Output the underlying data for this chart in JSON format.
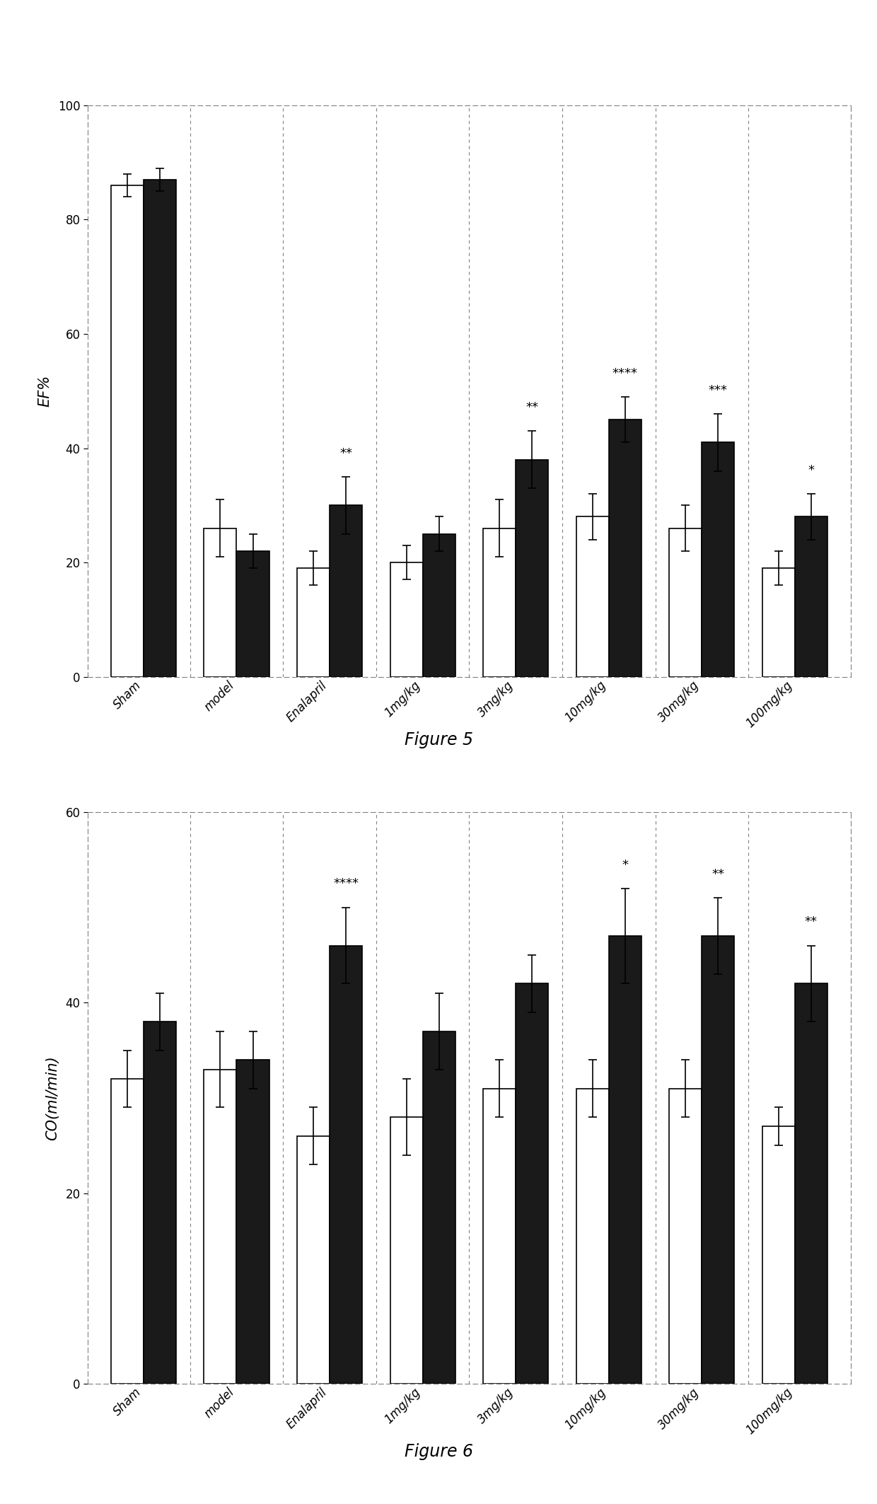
{
  "fig5": {
    "categories": [
      "Sham",
      "model",
      "Enalapril",
      "1mg/kg",
      "3mg/kg",
      "10mg/kg",
      "30mg/kg",
      "100mg/kg"
    ],
    "white_bars": [
      86,
      26,
      19,
      20,
      26,
      28,
      26,
      19
    ],
    "black_bars": [
      87,
      22,
      30,
      25,
      38,
      45,
      41,
      28
    ],
    "white_errors": [
      2,
      5,
      3,
      3,
      5,
      4,
      4,
      3
    ],
    "black_errors": [
      2,
      3,
      5,
      3,
      5,
      4,
      5,
      4
    ],
    "ylabel": "EF%",
    "ylim": [
      0,
      100
    ],
    "yticks": [
      0,
      20,
      40,
      60,
      80,
      100
    ],
    "significance": [
      "",
      "",
      "**",
      "",
      "**",
      "****",
      "***",
      "*"
    ],
    "title": "Figure 5"
  },
  "fig6": {
    "categories": [
      "Sham",
      "model",
      "Enalapril",
      "1mg/kg",
      "3mg/kg",
      "10mg/kg",
      "30mg/kg",
      "100mg/kg"
    ],
    "white_bars": [
      32,
      33,
      26,
      28,
      31,
      31,
      31,
      27
    ],
    "black_bars": [
      38,
      34,
      46,
      37,
      42,
      47,
      47,
      42
    ],
    "white_errors": [
      3,
      4,
      3,
      4,
      3,
      3,
      3,
      2
    ],
    "black_errors": [
      3,
      3,
      4,
      4,
      3,
      5,
      4,
      4
    ],
    "ylabel": "CO(ml/min)",
    "ylim": [
      0,
      60
    ],
    "yticks": [
      0,
      20,
      40,
      60
    ],
    "significance": [
      "",
      "",
      "****",
      "",
      "",
      "*",
      "**",
      "**"
    ],
    "title": "Figure 6"
  },
  "bar_width": 0.35,
  "white_color": "#ffffff",
  "black_color": "#1a1a1a",
  "edge_color": "#000000",
  "background_color": "#ffffff",
  "font_size_label": 15,
  "font_size_tick": 12,
  "font_size_sig": 13,
  "font_size_caption": 17
}
